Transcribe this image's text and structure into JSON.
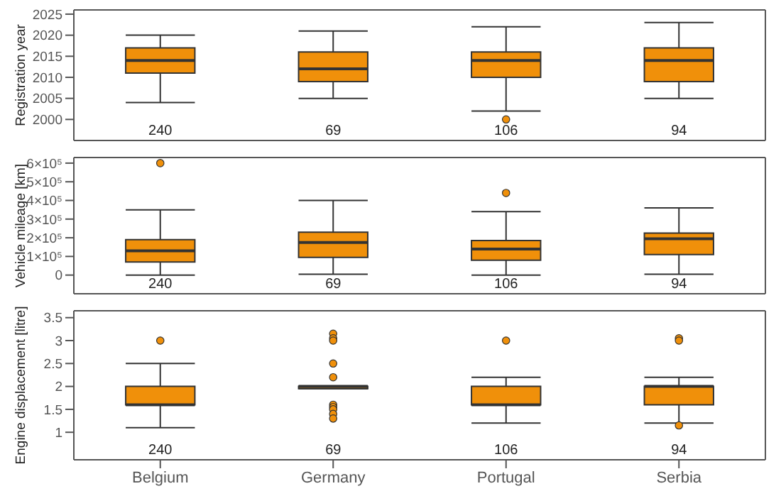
{
  "chart_data": [
    {
      "type": "box",
      "ylabel": "Registration year",
      "categories": [
        null,
        null,
        null,
        null
      ],
      "color": "#f0900a",
      "ylim": [
        1995,
        2026
      ],
      "yticks": [
        2000,
        2005,
        2010,
        2015,
        2020,
        2025
      ],
      "tick_labels": "y",
      "boxes": [
        {
          "low": 2004,
          "q1": 2011,
          "median": 2014,
          "q3": 2017,
          "high": 2020
        },
        {
          "low": 2005,
          "q1": 2009,
          "median": 2012,
          "q3": 2016,
          "high": 2021
        },
        {
          "low": 2002,
          "q1": 2010,
          "median": 2014,
          "q3": 2016,
          "high": 2022,
          "outliers": [
            2000
          ]
        },
        {
          "low": 2005,
          "q1": 2009,
          "median": 2014,
          "q3": 2017,
          "high": 2023
        }
      ],
      "annotations": [
        "240",
        "69",
        "106",
        "94"
      ]
    },
    {
      "type": "box",
      "ylabel": "Vehicle mileage [km]",
      "categories": [
        null,
        null,
        null,
        null
      ],
      "color": "#f0900a",
      "ylim": [
        -100000,
        630000
      ],
      "yticks": [
        0,
        {
          "value": 100000,
          "label": "1×10⁵"
        },
        {
          "value": 200000,
          "label": "2×10⁵"
        },
        {
          "value": 300000,
          "label": "3×10⁵"
        },
        {
          "value": 400000,
          "label": "4×10⁵"
        },
        {
          "value": 500000,
          "label": "5×10⁵"
        },
        {
          "value": 600000,
          "label": "6×10⁵"
        }
      ],
      "tick_labels": "y",
      "boxes": [
        {
          "low": 0,
          "q1": 70000,
          "median": 130000,
          "q3": 190000,
          "high": 350000,
          "outliers": [
            600000
          ]
        },
        {
          "low": 5000,
          "q1": 95000,
          "median": 175000,
          "q3": 230000,
          "high": 400000
        },
        {
          "low": 0,
          "q1": 80000,
          "median": 140000,
          "q3": 185000,
          "high": 340000,
          "outliers": [
            440000
          ]
        },
        {
          "low": 5000,
          "q1": 110000,
          "median": 195000,
          "q3": 225000,
          "high": 360000
        }
      ],
      "annotations": [
        "240",
        "69",
        "106",
        "94"
      ]
    },
    {
      "type": "box",
      "ylabel": "Engine displacement [litre]",
      "categories": [
        "Belgium",
        "Germany",
        "Portugal",
        "Serbia"
      ],
      "color": "#f0900a",
      "ylim": [
        0.4,
        3.65
      ],
      "yticks": [
        1.0,
        1.5,
        2.0,
        2.5,
        3.0,
        3.5
      ],
      "boxes": [
        {
          "low": 1.1,
          "q1": 1.6,
          "median": 1.6,
          "q3": 2.0,
          "high": 2.5,
          "outliers": [
            3.0
          ]
        },
        {
          "low": 1.95,
          "q1": 1.95,
          "median": 2.0,
          "q3": 2.0,
          "high": 2.0,
          "outliers": [
            3.15,
            3.05,
            3.0,
            2.5,
            2.2,
            1.6,
            1.55,
            1.5,
            1.4,
            1.3
          ]
        },
        {
          "low": 1.2,
          "q1": 1.6,
          "median": 1.6,
          "q3": 2.0,
          "high": 2.2,
          "outliers": [
            3.0
          ]
        },
        {
          "low": 1.2,
          "q1": 1.6,
          "median": 2.0,
          "q3": 2.0,
          "high": 2.2,
          "outliers": [
            3.05,
            3.0,
            1.15
          ]
        }
      ],
      "annotations": [
        "240",
        "69",
        "106",
        "94"
      ]
    }
  ]
}
